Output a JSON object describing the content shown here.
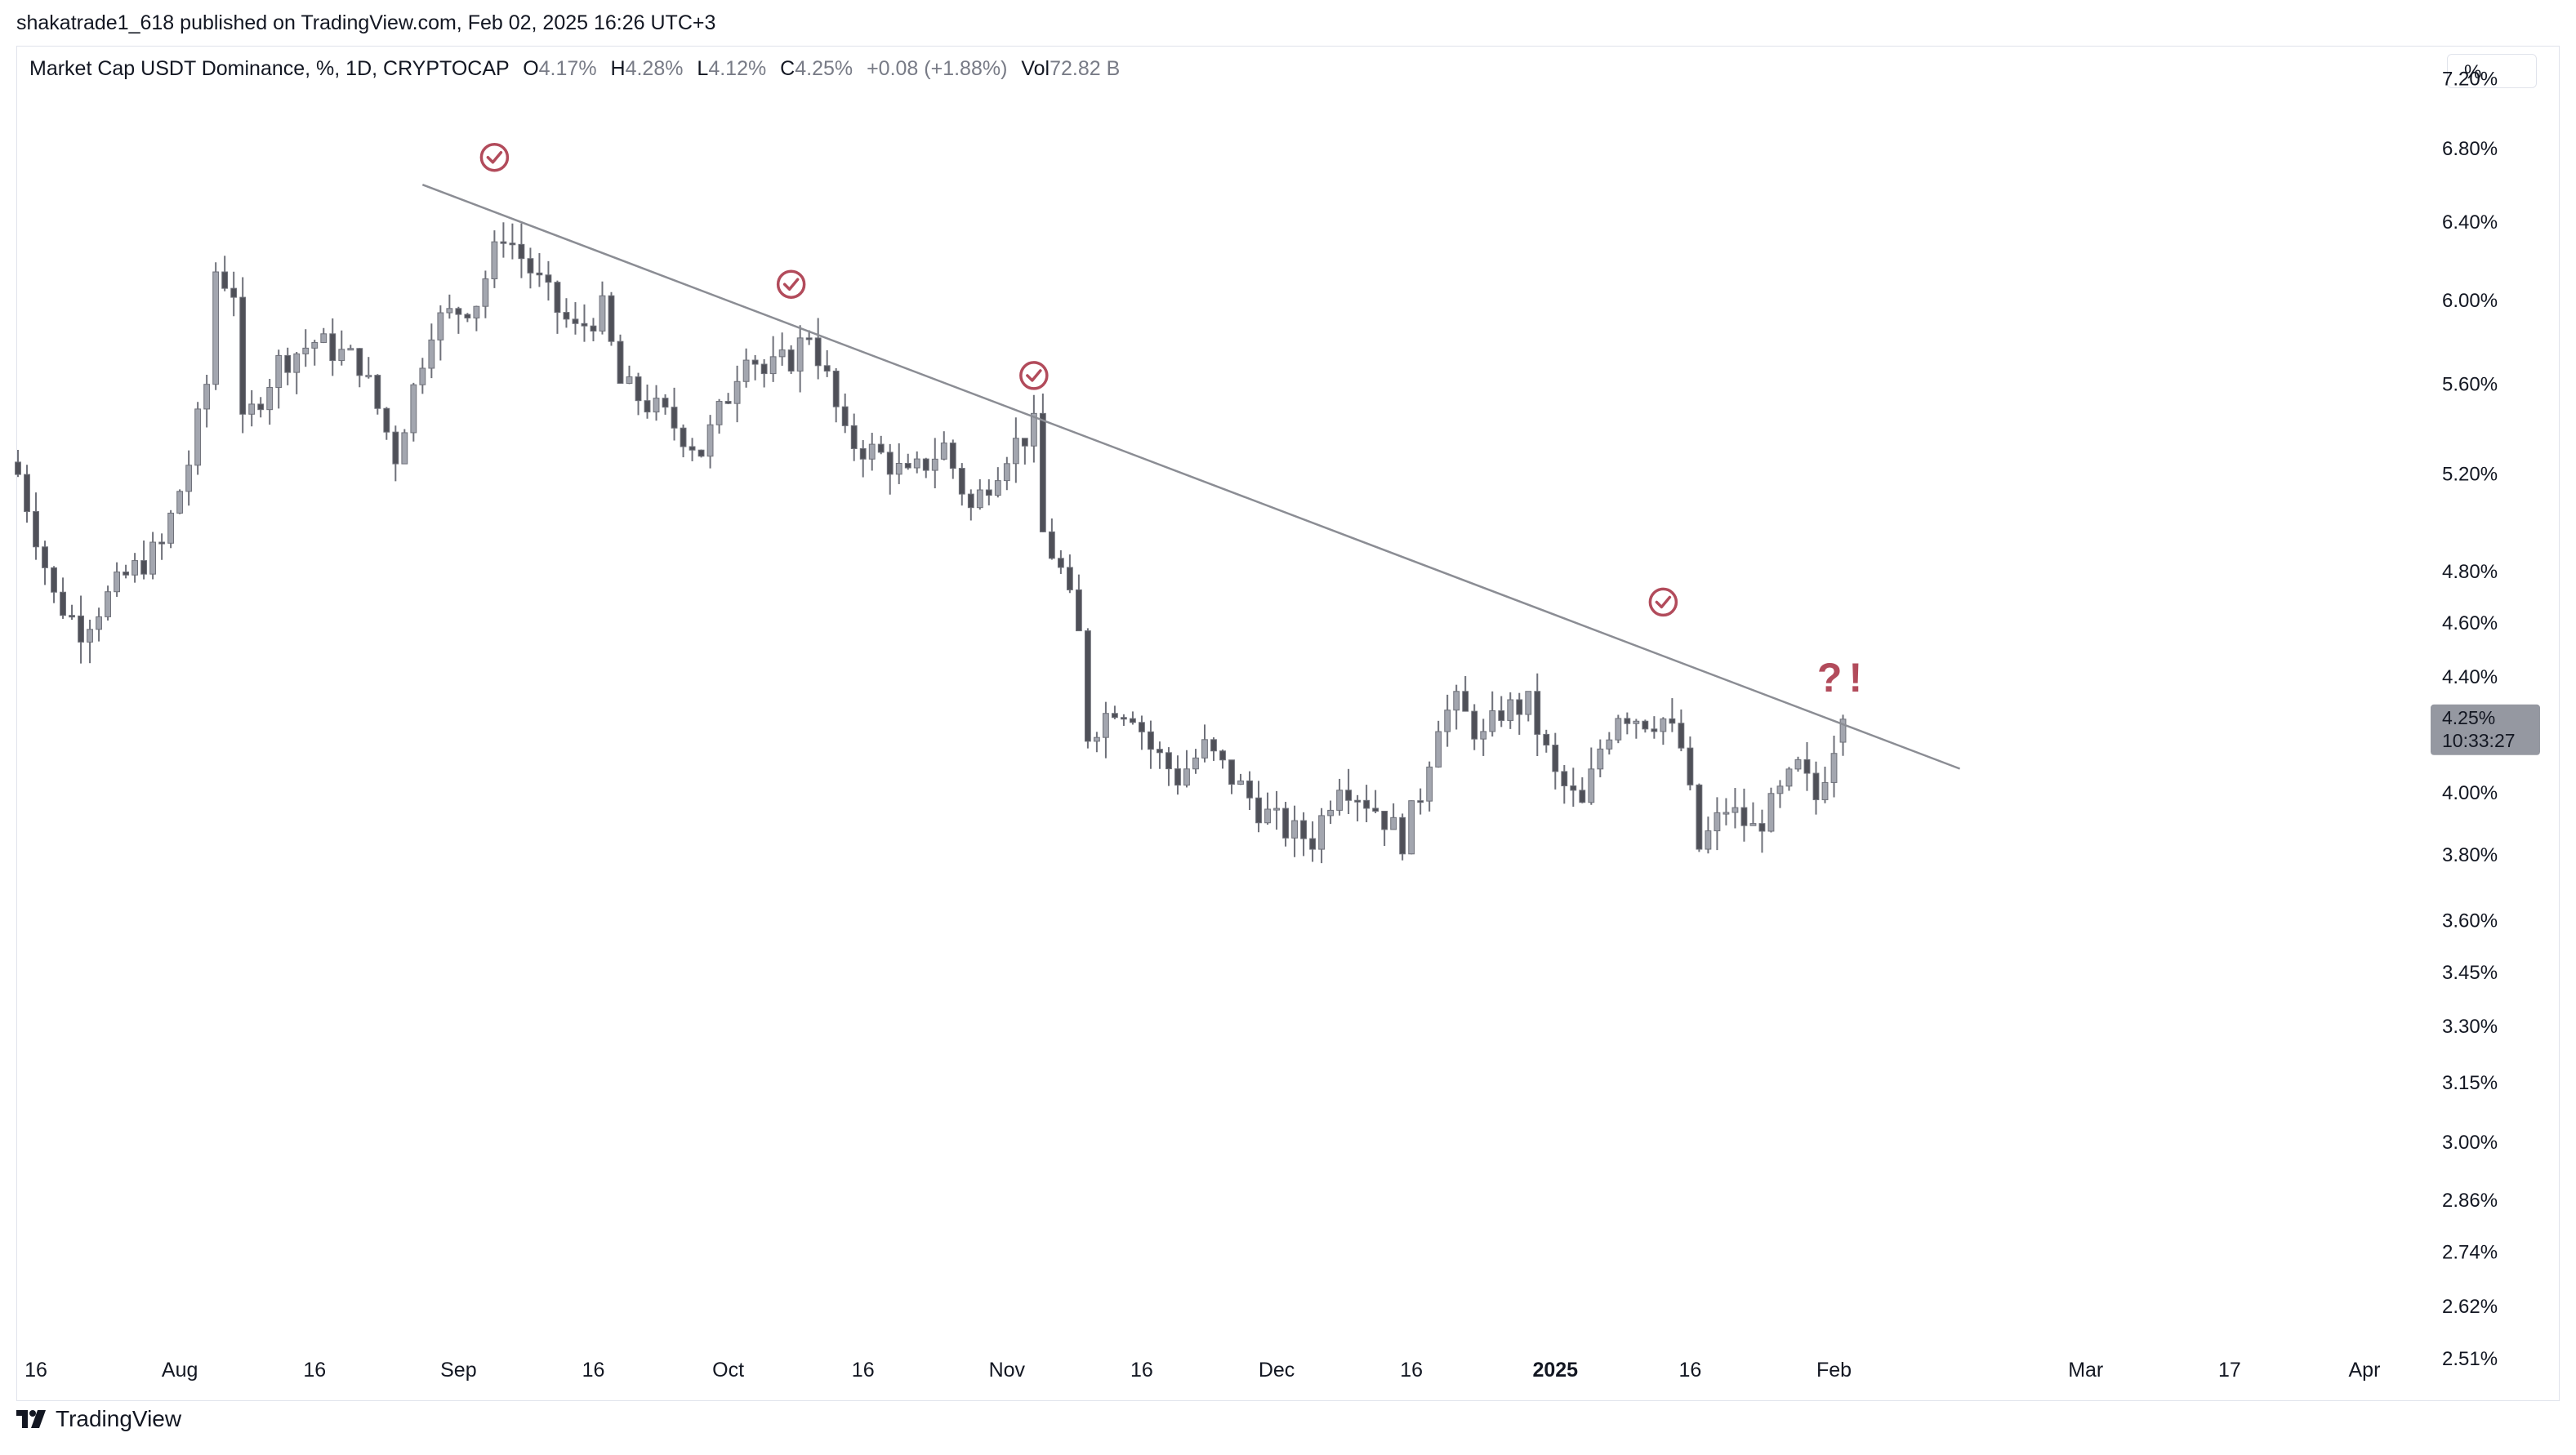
{
  "header": {
    "attribution": "shakatrade1_618 published on TradingView.com, Feb 02, 2025 16:26 UTC+3"
  },
  "legend": {
    "symbol": "Market Cap USDT Dominance, %, 1D, CRYPTOCAP",
    "open_label": "O",
    "open": "4.17%",
    "high_label": "H",
    "high": "4.28%",
    "low_label": "L",
    "low": "4.12%",
    "close_label": "C",
    "close": "4.25%",
    "change": "+0.08 (+1.88%)",
    "vol_label": "Vol",
    "vol": "72.82 B"
  },
  "toolbar": {
    "unit_label": "%"
  },
  "price_tag": {
    "price": "4.25%",
    "countdown": "10:33:27"
  },
  "footer": {
    "brand": "TradingView"
  },
  "colors": {
    "candle_up": "#a3a6af",
    "candle_down": "#4f5058",
    "wick": "#6e7079",
    "trendline": "#8b8d94",
    "annotation": "#b24b5b",
    "price_tag_bg": "#9598a1"
  },
  "chart_data": {
    "type": "candlestick",
    "title": "Market Cap USDT Dominance, %, 1D, CRYPTOCAP",
    "yscale": "log",
    "ylim": [
      2.45,
      7.4
    ],
    "xlim": [
      "2024-07-14",
      "2025-04-06"
    ],
    "x_ticks": [
      {
        "label": "16",
        "date": "2024-07-16"
      },
      {
        "label": "Aug",
        "date": "2024-08-01"
      },
      {
        "label": "16",
        "date": "2024-08-16"
      },
      {
        "label": "Sep",
        "date": "2024-09-01"
      },
      {
        "label": "16",
        "date": "2024-09-16"
      },
      {
        "label": "Oct",
        "date": "2024-10-01"
      },
      {
        "label": "16",
        "date": "2024-10-16"
      },
      {
        "label": "Nov",
        "date": "2024-11-01"
      },
      {
        "label": "16",
        "date": "2024-11-16"
      },
      {
        "label": "Dec",
        "date": "2024-12-01"
      },
      {
        "label": "16",
        "date": "2024-12-16"
      },
      {
        "label": "2025",
        "date": "2025-01-01",
        "bold": true
      },
      {
        "label": "16",
        "date": "2025-01-16"
      },
      {
        "label": "Feb",
        "date": "2025-02-01"
      },
      {
        "label": "Mar",
        "date": "2025-03-01"
      },
      {
        "label": "17",
        "date": "2025-03-17"
      },
      {
        "label": "Apr",
        "date": "2025-04-01"
      }
    ],
    "y_ticks": [
      {
        "label": "7.20%",
        "value": 7.2
      },
      {
        "label": "6.80%",
        "value": 6.8
      },
      {
        "label": "6.40%",
        "value": 6.4
      },
      {
        "label": "6.00%",
        "value": 6.0
      },
      {
        "label": "5.60%",
        "value": 5.6
      },
      {
        "label": "5.20%",
        "value": 5.2
      },
      {
        "label": "4.80%",
        "value": 4.8
      },
      {
        "label": "4.60%",
        "value": 4.6
      },
      {
        "label": "4.40%",
        "value": 4.4
      },
      {
        "label": "4.00%",
        "value": 4.0
      },
      {
        "label": "3.80%",
        "value": 3.8
      },
      {
        "label": "3.60%",
        "value": 3.6
      },
      {
        "label": "3.45%",
        "value": 3.45
      },
      {
        "label": "3.30%",
        "value": 3.3
      },
      {
        "label": "3.15%",
        "value": 3.15
      },
      {
        "label": "3.00%",
        "value": 3.0
      },
      {
        "label": "2.86%",
        "value": 2.86
      },
      {
        "label": "2.74%",
        "value": 2.74
      },
      {
        "label": "2.62%",
        "value": 2.62
      },
      {
        "label": "2.51%",
        "value": 2.51
      }
    ],
    "trendline": {
      "from": {
        "date": "2024-08-28",
        "value": 6.6
      },
      "to": {
        "date": "2025-02-15",
        "value": 4.08
      }
    },
    "annotations": [
      {
        "type": "check",
        "date": "2024-09-05",
        "value": 6.75
      },
      {
        "type": "check",
        "date": "2024-10-08",
        "value": 6.08
      },
      {
        "type": "check",
        "date": "2024-11-04",
        "value": 5.64
      },
      {
        "type": "check",
        "date": "2025-01-13",
        "value": 4.68
      },
      {
        "type": "text",
        "text": "?!",
        "date": "2025-02-02",
        "value": 4.4
      }
    ],
    "anchors": [
      {
        "date": "2024-07-14",
        "value": 5.2
      },
      {
        "date": "2024-07-18",
        "value": 4.7
      },
      {
        "date": "2024-07-21",
        "value": 4.58
      },
      {
        "date": "2024-07-26",
        "value": 4.78
      },
      {
        "date": "2024-07-30",
        "value": 4.9
      },
      {
        "date": "2024-08-02",
        "value": 5.25
      },
      {
        "date": "2024-08-04",
        "value": 5.6
      },
      {
        "date": "2024-08-05",
        "value": 6.15
      },
      {
        "date": "2024-08-07",
        "value": 6.05
      },
      {
        "date": "2024-08-08",
        "value": 5.4
      },
      {
        "date": "2024-08-12",
        "value": 5.7
      },
      {
        "date": "2024-08-16",
        "value": 5.8
      },
      {
        "date": "2024-08-21",
        "value": 5.7
      },
      {
        "date": "2024-08-25",
        "value": 5.28
      },
      {
        "date": "2024-08-29",
        "value": 5.88
      },
      {
        "date": "2024-09-03",
        "value": 6.0
      },
      {
        "date": "2024-09-06",
        "value": 6.35
      },
      {
        "date": "2024-09-09",
        "value": 6.15
      },
      {
        "date": "2024-09-12",
        "value": 5.95
      },
      {
        "date": "2024-09-14",
        "value": 5.85
      },
      {
        "date": "2024-09-17",
        "value": 5.95
      },
      {
        "date": "2024-09-19",
        "value": 5.6
      },
      {
        "date": "2024-09-24",
        "value": 5.45
      },
      {
        "date": "2024-09-28",
        "value": 5.3
      },
      {
        "date": "2024-10-01",
        "value": 5.55
      },
      {
        "date": "2024-10-03",
        "value": 5.78
      },
      {
        "date": "2024-10-05",
        "value": 5.65
      },
      {
        "date": "2024-10-08",
        "value": 5.72
      },
      {
        "date": "2024-10-10",
        "value": 5.85
      },
      {
        "date": "2024-10-12",
        "value": 5.62
      },
      {
        "date": "2024-10-14",
        "value": 5.35
      },
      {
        "date": "2024-10-18",
        "value": 5.28
      },
      {
        "date": "2024-10-21",
        "value": 5.18
      },
      {
        "date": "2024-10-25",
        "value": 5.32
      },
      {
        "date": "2024-10-28",
        "value": 5.05
      },
      {
        "date": "2024-11-01",
        "value": 5.3
      },
      {
        "date": "2024-11-04",
        "value": 5.4
      },
      {
        "date": "2024-11-05",
        "value": 4.95
      },
      {
        "date": "2024-11-07",
        "value": 4.8
      },
      {
        "date": "2024-11-09",
        "value": 4.55
      },
      {
        "date": "2024-11-10",
        "value": 4.2
      },
      {
        "date": "2024-11-13",
        "value": 4.3
      },
      {
        "date": "2024-11-15",
        "value": 4.28
      },
      {
        "date": "2024-11-17",
        "value": 4.15
      },
      {
        "date": "2024-11-20",
        "value": 4.05
      },
      {
        "date": "2024-11-23",
        "value": 4.15
      },
      {
        "date": "2024-11-26",
        "value": 4.05
      },
      {
        "date": "2024-11-29",
        "value": 3.95
      },
      {
        "date": "2024-12-02",
        "value": 3.88
      },
      {
        "date": "2024-12-05",
        "value": 3.85
      },
      {
        "date": "2024-12-08",
        "value": 4.05
      },
      {
        "date": "2024-12-12",
        "value": 3.95
      },
      {
        "date": "2024-12-15",
        "value": 3.85
      },
      {
        "date": "2024-12-17",
        "value": 4.0
      },
      {
        "date": "2024-12-19",
        "value": 4.25
      },
      {
        "date": "2024-12-21",
        "value": 4.3
      },
      {
        "date": "2024-12-24",
        "value": 4.18
      },
      {
        "date": "2024-12-26",
        "value": 4.28
      },
      {
        "date": "2024-12-29",
        "value": 4.3
      },
      {
        "date": "2025-01-01",
        "value": 4.05
      },
      {
        "date": "2025-01-04",
        "value": 3.95
      },
      {
        "date": "2025-01-06",
        "value": 4.15
      },
      {
        "date": "2025-01-08",
        "value": 4.28
      },
      {
        "date": "2025-01-11",
        "value": 4.25
      },
      {
        "date": "2025-01-13",
        "value": 4.25
      },
      {
        "date": "2025-01-15",
        "value": 4.15
      },
      {
        "date": "2025-01-17",
        "value": 3.82
      },
      {
        "date": "2025-01-20",
        "value": 3.95
      },
      {
        "date": "2025-01-23",
        "value": 3.88
      },
      {
        "date": "2025-01-25",
        "value": 3.95
      },
      {
        "date": "2025-01-28",
        "value": 4.08
      },
      {
        "date": "2025-01-30",
        "value": 3.98
      },
      {
        "date": "2025-02-01",
        "value": 4.17
      },
      {
        "date": "2025-02-02",
        "value": 4.25
      }
    ]
  }
}
